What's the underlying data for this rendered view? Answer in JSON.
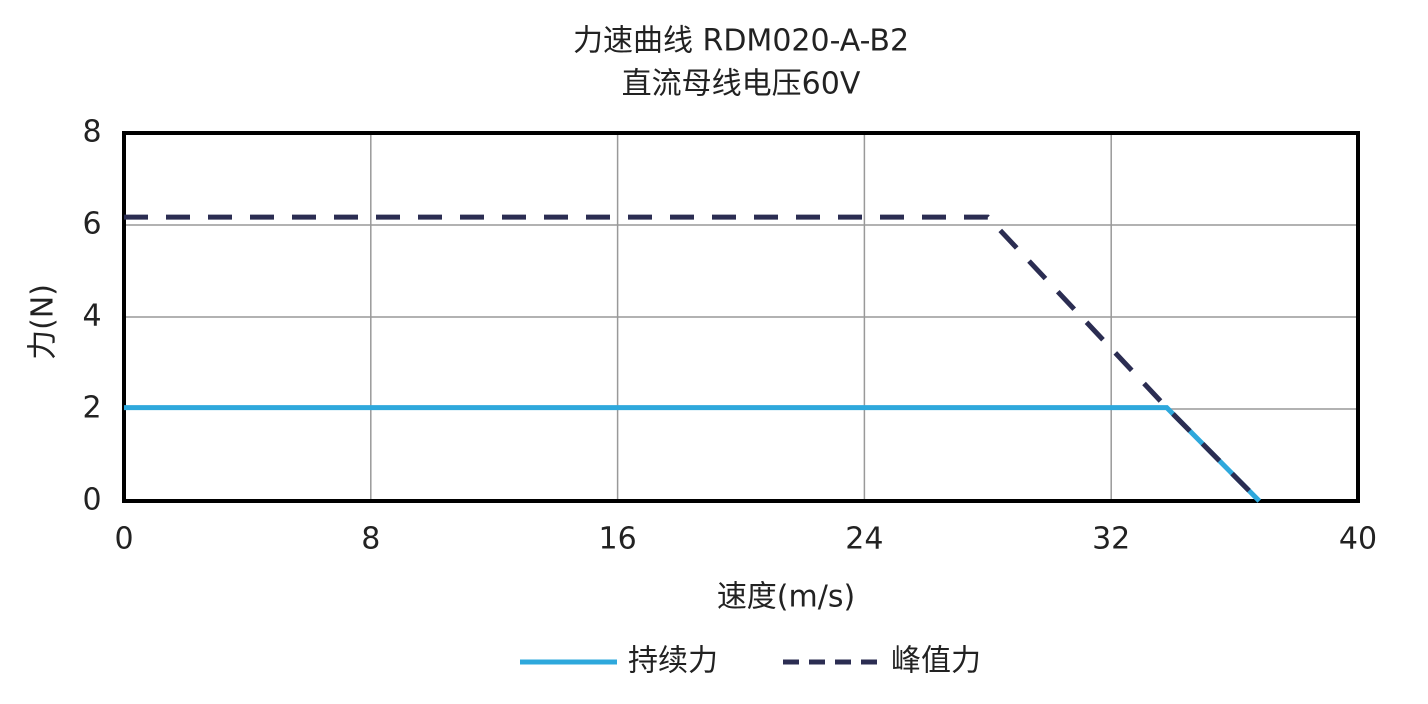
{
  "chart_data": {
    "type": "line",
    "title": "力速曲线 RDM020-A-B2",
    "subtitle": "直流母线电压60V",
    "x_label": "速度(m/s)",
    "y_label": "力(N)",
    "xlim": [
      0,
      40
    ],
    "xticks": [
      0,
      8,
      16,
      24,
      32,
      40
    ],
    "ylim": [
      0,
      8
    ],
    "yticks": [
      0,
      2,
      4,
      6,
      8
    ],
    "grid": true,
    "legend": "bottom",
    "series": [
      {
        "name": "持续力",
        "color": "#2ea8dc",
        "style": "solid",
        "x": [
          0,
          33.8,
          36.8
        ],
        "values": [
          2.03,
          2.03,
          0
        ]
      },
      {
        "name": "峰值力",
        "color": "#2b2d52",
        "style": "dashed",
        "x": [
          0,
          28,
          33.8,
          36.8
        ],
        "values": [
          6.17,
          6.17,
          2.03,
          0
        ]
      }
    ]
  }
}
